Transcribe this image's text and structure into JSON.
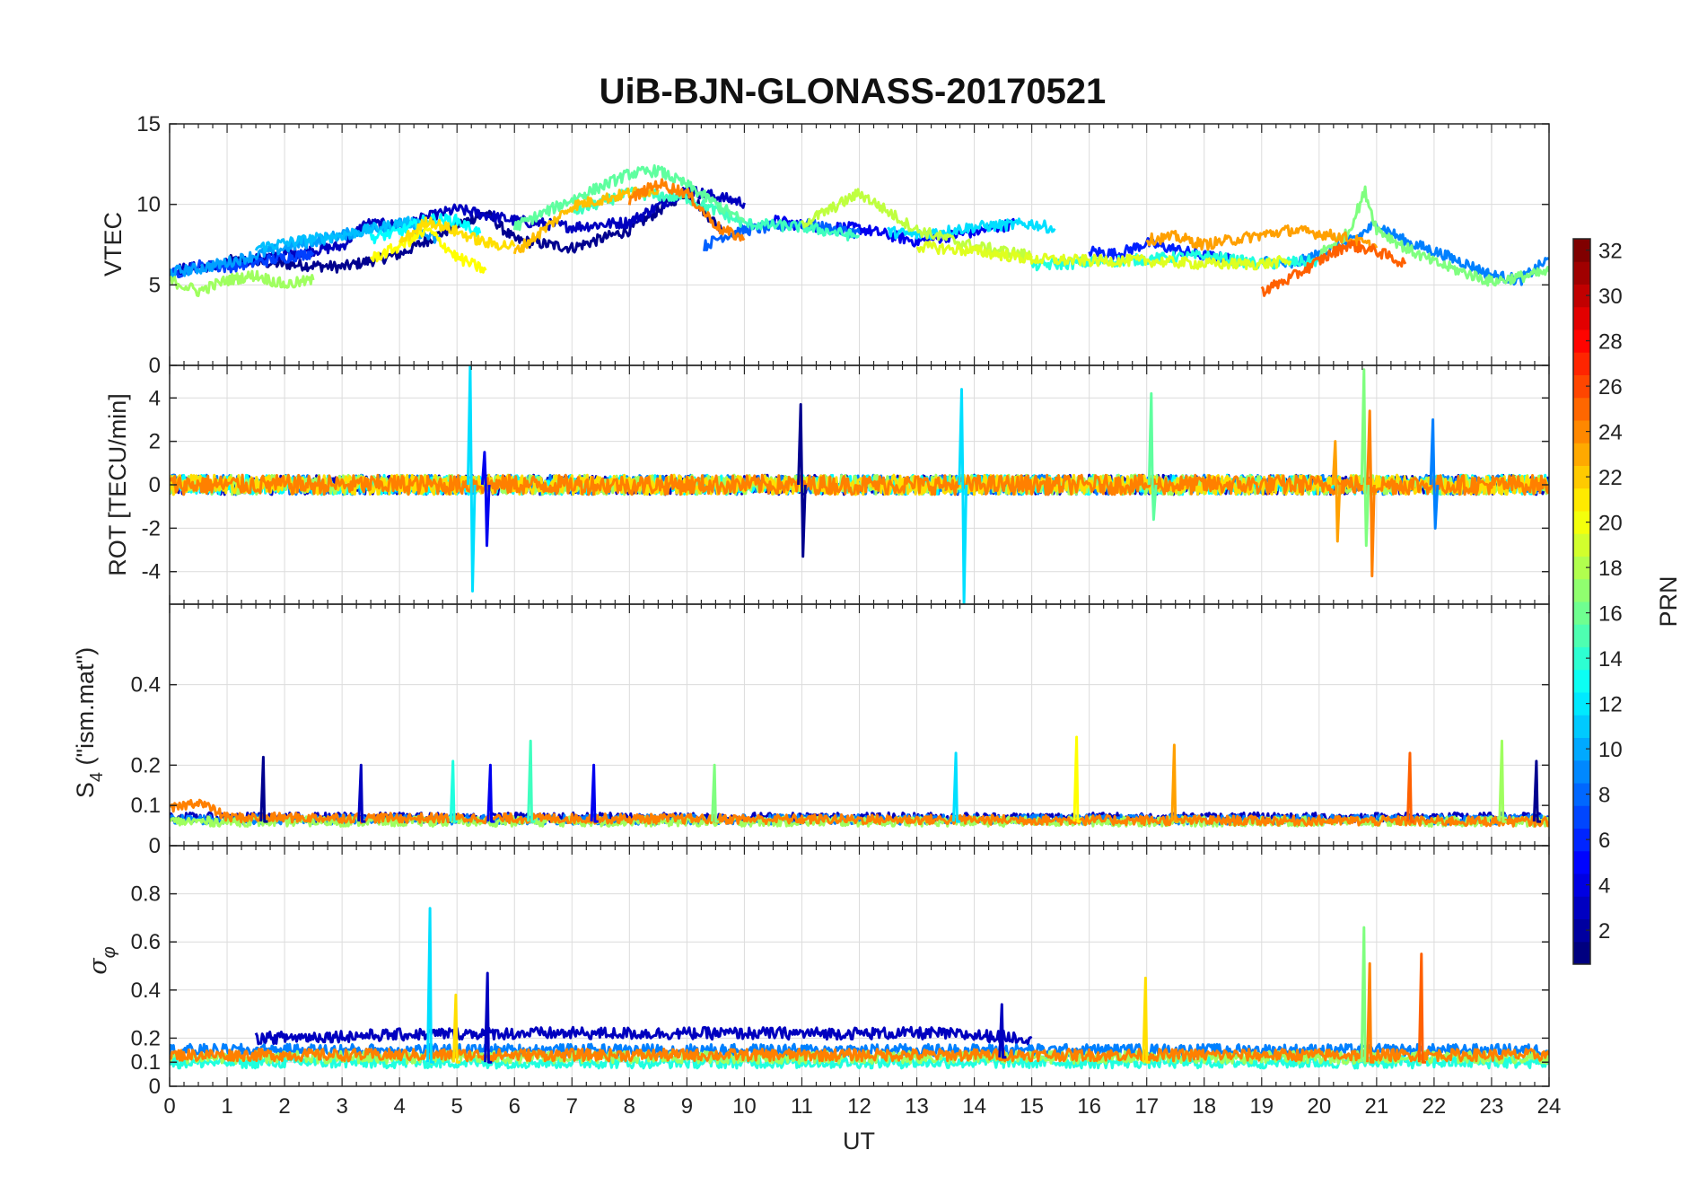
{
  "chart_data": {
    "type": "line",
    "title": "UiB-BJN-GLONASS-20170521",
    "xlabel": "UT",
    "x_ticks": [
      "0",
      "1",
      "2",
      "3",
      "4",
      "5",
      "6",
      "7",
      "8",
      "9",
      "10",
      "11",
      "12",
      "13",
      "14",
      "15",
      "16",
      "17",
      "18",
      "19",
      "20",
      "21",
      "22",
      "23",
      "24"
    ],
    "xlim": [
      0,
      24
    ],
    "grid": true,
    "panels": [
      {
        "id": "vtec",
        "ylabel": "VTEC",
        "ylim": [
          0,
          15
        ],
        "y_ticks": [
          0,
          5,
          10,
          15
        ],
        "y_tick_labels": [
          "0",
          "5",
          "10",
          "15"
        ],
        "series": [
          {
            "prn": 1,
            "color": "#00008f",
            "x": [
              1.0,
              2.0,
              3.0,
              4.0,
              5.0,
              5.5,
              6.0,
              7.0,
              8.0,
              9.0,
              9.6
            ],
            "y": [
              6.5,
              6.3,
              6.1,
              6.9,
              8.7,
              9.5,
              7.8,
              7.3,
              8.4,
              10.8,
              8.4
            ]
          },
          {
            "prn": 2,
            "color": "#0000bf",
            "x": [
              0.0,
              1.0,
              2.0,
              3.0,
              3.4,
              4.0,
              5.0,
              6.0,
              7.0,
              8.0,
              9.0,
              10.0
            ],
            "y": [
              5.9,
              6.3,
              6.9,
              7.4,
              8.8,
              8.7,
              9.7,
              9.0,
              8.6,
              8.9,
              10.9,
              10.1
            ]
          },
          {
            "prn": 3,
            "color": "#0000ef",
            "x": [
              10.5,
              11.0,
              12.0,
              13.0,
              14.0,
              14.7
            ],
            "y": [
              9.0,
              8.7,
              8.5,
              7.7,
              8.3,
              8.8
            ]
          },
          {
            "prn": 4,
            "color": "#0020ff",
            "x": [
              16.0,
              16.5,
              17.0,
              17.5,
              18.0,
              18.5
            ],
            "y": [
              7.1,
              6.9,
              7.6,
              7.2,
              6.8,
              6.6
            ]
          },
          {
            "prn": 5,
            "color": "#0040ff",
            "x": [
              0.0,
              0.5,
              1.0,
              2.0,
              2.5
            ],
            "y": [
              5.6,
              6.2,
              6.1,
              6.7,
              7.0
            ]
          },
          {
            "prn": 6,
            "color": "#0060ff",
            "x": [
              9.3,
              9.6,
              10.0,
              11.0,
              12.0
            ],
            "y": [
              7.4,
              8.0,
              8.4,
              8.8,
              8.2
            ]
          },
          {
            "prn": 7,
            "color": "#0080ff",
            "x": [
              19.0,
              19.5,
              20.0,
              20.5,
              21.0,
              21.5,
              22.0,
              22.5,
              23.0,
              23.5,
              24.0
            ],
            "y": [
              6.5,
              6.2,
              6.9,
              7.6,
              8.8,
              7.7,
              7.1,
              6.4,
              5.6,
              5.3,
              6.6
            ]
          },
          {
            "prn": 8,
            "color": "#00a0ff",
            "x": [
              0.0,
              0.5,
              1.0,
              2.0,
              3.0,
              4.0,
              4.7
            ],
            "y": [
              5.8,
              6.0,
              6.4,
              7.3,
              8.1,
              8.8,
              7.7
            ]
          },
          {
            "prn": 9,
            "color": "#00bfff",
            "x": [
              1.5,
              2.0,
              3.0,
              4.0,
              4.5
            ],
            "y": [
              7.3,
              7.6,
              8.1,
              8.8,
              9.0
            ]
          },
          {
            "prn": 10,
            "color": "#00dfff",
            "x": [
              12.5,
              13.0,
              14.0,
              15.0,
              15.4
            ],
            "y": [
              8.3,
              8.1,
              8.6,
              8.8,
              8.5
            ]
          },
          {
            "prn": 11,
            "color": "#00ffff",
            "x": [
              3.5,
              4.0,
              4.5,
              5.0,
              5.4
            ],
            "y": [
              7.9,
              8.3,
              9.1,
              9.0,
              8.2
            ]
          },
          {
            "prn": 12,
            "color": "#1fffdf",
            "x": [
              15.0,
              16.0,
              17.0,
              18.0,
              19.0,
              20.0
            ],
            "y": [
              6.2,
              6.4,
              6.6,
              6.8,
              6.3,
              6.5
            ]
          },
          {
            "prn": 13,
            "color": "#3fffbf",
            "x": [
              7.0,
              8.0,
              9.0,
              10.0,
              11.0,
              12.0
            ],
            "y": [
              9.5,
              10.7,
              10.4,
              8.8,
              8.6,
              8.0
            ]
          },
          {
            "prn": 14,
            "color": "#5fff9f",
            "x": [
              6.0,
              7.0,
              8.0,
              8.5,
              9.0,
              10.0
            ],
            "y": [
              8.6,
              10.3,
              11.9,
              12.1,
              11.2,
              8.9
            ]
          },
          {
            "prn": 15,
            "color": "#7fff7f",
            "x": [
              20.0,
              20.5,
              20.8,
              21.0,
              21.5,
              22.0,
              23.0,
              24.0
            ],
            "y": [
              6.9,
              8.2,
              10.8,
              8.5,
              7.3,
              6.4,
              5.2,
              5.8
            ]
          },
          {
            "prn": 16,
            "color": "#9fff5f",
            "x": [
              0.0,
              0.5,
              1.0,
              1.5,
              2.0,
              2.5
            ],
            "y": [
              5.3,
              4.6,
              5.3,
              5.6,
              5.0,
              5.3
            ]
          },
          {
            "prn": 17,
            "color": "#bfff3f",
            "x": [
              11.0,
              11.5,
              12.0,
              13.0,
              14.0,
              15.0
            ],
            "y": [
              8.8,
              9.7,
              10.7,
              8.4,
              7.4,
              6.8
            ]
          },
          {
            "prn": 18,
            "color": "#dfff1f",
            "x": [
              13.0,
              14.0,
              15.0,
              16.0,
              17.0,
              18.0,
              19.0,
              19.5
            ],
            "y": [
              7.4,
              7.1,
              6.6,
              6.5,
              6.5,
              6.3,
              6.3,
              6.5
            ]
          },
          {
            "prn": 19,
            "color": "#ffff00",
            "x": [
              3.5,
              4.0,
              4.5,
              5.0,
              5.5
            ],
            "y": [
              6.6,
              7.4,
              8.4,
              6.7,
              5.9
            ]
          },
          {
            "prn": 20,
            "color": "#ffdf00",
            "x": [
              4.0,
              4.5,
              5.0,
              5.5,
              6.0
            ],
            "y": [
              7.6,
              9.0,
              8.3,
              7.6,
              7.4
            ]
          },
          {
            "prn": 21,
            "color": "#ffbf00",
            "x": [
              6.0,
              6.5,
              7.0,
              7.5,
              8.0,
              8.5
            ],
            "y": [
              7.0,
              8.4,
              9.9,
              10.3,
              10.7,
              10.9
            ]
          },
          {
            "prn": 22,
            "color": "#ffa000",
            "x": [
              17.0,
              17.5,
              18.0,
              18.5,
              19.0,
              19.5,
              20.0,
              20.5,
              21.0
            ],
            "y": [
              7.8,
              8.0,
              7.5,
              7.8,
              8.1,
              8.4,
              8.2,
              7.9,
              7.3
            ]
          },
          {
            "prn": 23,
            "color": "#ff8000",
            "x": [
              8.0,
              8.5,
              9.0,
              9.3,
              9.6,
              10.0
            ],
            "y": [
              10.3,
              11.3,
              10.7,
              9.5,
              8.4,
              7.9
            ]
          },
          {
            "prn": 24,
            "color": "#ff6000",
            "x": [
              19.0,
              19.5,
              20.0,
              20.5,
              21.0,
              21.5
            ],
            "y": [
              4.6,
              5.4,
              6.5,
              7.5,
              7.1,
              6.3
            ]
          }
        ]
      },
      {
        "id": "rot",
        "ylabel": "ROT [TECU/min]",
        "ylim": [
          -5.5,
          5.5
        ],
        "y_ticks": [
          -4,
          -2,
          0,
          2,
          4
        ],
        "y_tick_labels": [
          "-4",
          "-2",
          "0",
          "2",
          "4"
        ],
        "spikes": [
          {
            "x": 5.25,
            "top": 5.5,
            "bottom": -4.9,
            "color": "#00dfff"
          },
          {
            "x": 5.5,
            "top": 1.5,
            "bottom": -2.8,
            "color": "#0000ef"
          },
          {
            "x": 11.0,
            "top": 3.7,
            "bottom": -3.3,
            "color": "#00008f"
          },
          {
            "x": 13.8,
            "top": 4.4,
            "bottom": -5.5,
            "color": "#00dfff"
          },
          {
            "x": 17.1,
            "top": 4.2,
            "bottom": -1.6,
            "color": "#5fff9f"
          },
          {
            "x": 20.8,
            "top": 5.3,
            "bottom": -2.8,
            "color": "#7fff7f"
          },
          {
            "x": 20.9,
            "top": 3.4,
            "bottom": -4.2,
            "color": "#ff8000"
          },
          {
            "x": 20.3,
            "top": 2.0,
            "bottom": -2.6,
            "color": "#ffa000"
          },
          {
            "x": 22.0,
            "top": 3.0,
            "bottom": -2.0,
            "color": "#0080ff"
          }
        ],
        "series": [
          {
            "prn": 2,
            "color": "#0000bf",
            "x": [
              0.0,
              24.0
            ],
            "y": [
              0.0,
              0.0
            ]
          },
          {
            "prn": 7,
            "color": "#0080ff",
            "x": [
              0.0,
              24.0
            ],
            "y": [
              0.0,
              0.0
            ]
          },
          {
            "prn": 11,
            "color": "#00ffff",
            "x": [
              0.0,
              24.0
            ],
            "y": [
              0.0,
              0.0
            ]
          },
          {
            "prn": 16,
            "color": "#9fff5f",
            "x": [
              0.0,
              24.0
            ],
            "y": [
              0.0,
              0.0
            ]
          },
          {
            "prn": 20,
            "color": "#ffdf00",
            "x": [
              0.0,
              24.0
            ],
            "y": [
              0.0,
              0.0
            ]
          },
          {
            "prn": 23,
            "color": "#ff8000",
            "x": [
              0.0,
              24.0
            ],
            "y": [
              0.0,
              0.0
            ]
          }
        ]
      },
      {
        "id": "s4",
        "ylabel": "S4 (\"ism.mat\")",
        "ylabel_main": "S",
        "ylabel_sub": "4",
        "ylabel_rest": " (\"ism.mat\")",
        "ylim": [
          0,
          0.6
        ],
        "y_ticks": [
          0,
          0.1,
          0.2,
          0.4
        ],
        "y_tick_labels": [
          "0",
          "0.1",
          "0.2",
          "0.4"
        ],
        "spikes": [
          {
            "x": 1.65,
            "top": 0.22,
            "bottom": 0.06,
            "color": "#00008f"
          },
          {
            "x": 3.35,
            "top": 0.2,
            "bottom": 0.06,
            "color": "#0000bf"
          },
          {
            "x": 4.95,
            "top": 0.21,
            "bottom": 0.06,
            "color": "#1fffdf"
          },
          {
            "x": 5.6,
            "top": 0.2,
            "bottom": 0.06,
            "color": "#0000ef"
          },
          {
            "x": 6.3,
            "top": 0.26,
            "bottom": 0.06,
            "color": "#3fffbf"
          },
          {
            "x": 7.4,
            "top": 0.2,
            "bottom": 0.06,
            "color": "#0000ef"
          },
          {
            "x": 9.5,
            "top": 0.2,
            "bottom": 0.06,
            "color": "#7fff7f"
          },
          {
            "x": 13.7,
            "top": 0.23,
            "bottom": 0.06,
            "color": "#00dfff"
          },
          {
            "x": 15.8,
            "top": 0.27,
            "bottom": 0.06,
            "color": "#ffff00"
          },
          {
            "x": 17.5,
            "top": 0.25,
            "bottom": 0.06,
            "color": "#ffa000"
          },
          {
            "x": 21.6,
            "top": 0.23,
            "bottom": 0.06,
            "color": "#ff6000"
          },
          {
            "x": 23.2,
            "top": 0.26,
            "bottom": 0.06,
            "color": "#9fff5f"
          },
          {
            "x": 23.8,
            "top": 0.21,
            "bottom": 0.06,
            "color": "#00008f"
          }
        ],
        "series": [
          {
            "prn": 2,
            "color": "#0000bf",
            "x": [
              0.0,
              24.0
            ],
            "y": [
              0.07,
              0.07
            ]
          },
          {
            "prn": 7,
            "color": "#0080ff",
            "x": [
              0.0,
              24.0
            ],
            "y": [
              0.065,
              0.065
            ]
          },
          {
            "prn": 16,
            "color": "#9fff5f",
            "x": [
              0.0,
              24.0
            ],
            "y": [
              0.06,
              0.06
            ]
          },
          {
            "prn": 23,
            "color": "#ff8000",
            "x": [
              0.0,
              0.5,
              1.0,
              24.0
            ],
            "y": [
              0.09,
              0.11,
              0.07,
              0.06
            ]
          }
        ]
      },
      {
        "id": "sigma",
        "ylabel": "σφ",
        "ylabel_main": "σ",
        "ylabel_sub": "φ",
        "ylim": [
          0,
          1
        ],
        "y_ticks": [
          0,
          0.1,
          0.2,
          0.4,
          0.6,
          0.8
        ],
        "y_tick_labels": [
          "0",
          "0.1",
          "0.2",
          "0.4",
          "0.6",
          "0.8"
        ],
        "spikes": [
          {
            "x": 4.55,
            "top": 0.74,
            "bottom": 0.1,
            "color": "#00dfff"
          },
          {
            "x": 5.55,
            "top": 0.47,
            "bottom": 0.1,
            "color": "#0000bf"
          },
          {
            "x": 5.0,
            "top": 0.38,
            "bottom": 0.1,
            "color": "#ffdf00"
          },
          {
            "x": 14.5,
            "top": 0.34,
            "bottom": 0.12,
            "color": "#0000bf"
          },
          {
            "x": 17.0,
            "top": 0.45,
            "bottom": 0.1,
            "color": "#ffdf00"
          },
          {
            "x": 20.8,
            "top": 0.66,
            "bottom": 0.1,
            "color": "#7fff7f"
          },
          {
            "x": 20.9,
            "top": 0.51,
            "bottom": 0.1,
            "color": "#ff8000"
          },
          {
            "x": 21.8,
            "top": 0.55,
            "bottom": 0.1,
            "color": "#ff6000"
          }
        ],
        "series": [
          {
            "prn": 2,
            "color": "#0000bf",
            "x": [
              1.5,
              5.0,
              13.3,
              15.0
            ],
            "y": [
              0.2,
              0.22,
              0.22,
              0.2
            ]
          },
          {
            "prn": 7,
            "color": "#0080ff",
            "x": [
              0.0,
              24.0
            ],
            "y": [
              0.15,
              0.15
            ]
          },
          {
            "prn": 12,
            "color": "#1fffdf",
            "x": [
              0.0,
              24.0
            ],
            "y": [
              0.1,
              0.1
            ]
          },
          {
            "prn": 16,
            "color": "#9fff5f",
            "x": [
              0.0,
              24.0
            ],
            "y": [
              0.12,
              0.12
            ]
          },
          {
            "prn": 23,
            "color": "#ff8000",
            "x": [
              0.0,
              24.0
            ],
            "y": [
              0.13,
              0.13
            ]
          }
        ]
      }
    ],
    "colorbar": {
      "label": "PRN",
      "range": [
        1,
        32
      ],
      "ticks": [
        "2",
        "4",
        "6",
        "8",
        "10",
        "12",
        "14",
        "16",
        "18",
        "20",
        "22",
        "24",
        "26",
        "28",
        "30",
        "32"
      ],
      "colormap": "jet"
    }
  }
}
